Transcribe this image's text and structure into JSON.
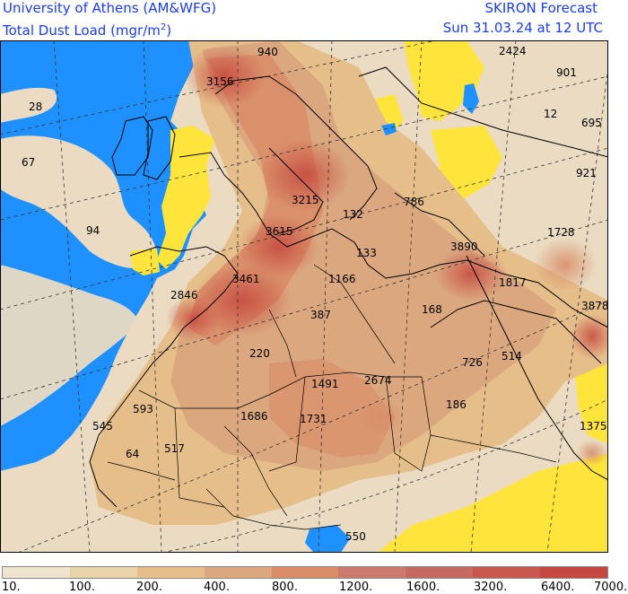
{
  "header": {
    "institution": "University of Athens (AM&WFG)",
    "variable": "Total Dust Load (mgr/m",
    "unit_power": "2",
    "unit_close": ")",
    "product": "SKIRON Forecast",
    "valid_time": "Sun 31.03.24 at 12 UTC"
  },
  "map_labels": [
    "940",
    "3156",
    "28",
    "67",
    "3215",
    "2424",
    "901",
    "12",
    "695",
    "921",
    "94",
    "132",
    "786",
    "1728",
    "3615",
    "133",
    "3890",
    "3461",
    "1166",
    "2846",
    "1817",
    "387",
    "168",
    "3878",
    "220",
    "726",
    "514",
    "1491",
    "2674",
    "186",
    "593",
    "545",
    "1686",
    "1731",
    "1375",
    "64",
    "517",
    "550"
  ],
  "colorbar": {
    "colors": [
      "#efe4d0",
      "#e8d4a8",
      "#e6be8a",
      "#dba77f",
      "#d98e68",
      "#cc7a6e",
      "#c46a63",
      "#c6584e",
      "#c5473f"
    ],
    "ticks": [
      "10.",
      "100.",
      "200.",
      "400.",
      "800.",
      "1200.",
      "1600.",
      "3200.",
      "6400.",
      "7000."
    ]
  },
  "legend_colors": {
    "sea": "#1e90ff",
    "low_dust": "#ffe53b",
    "land_base": "#eadbc2"
  }
}
